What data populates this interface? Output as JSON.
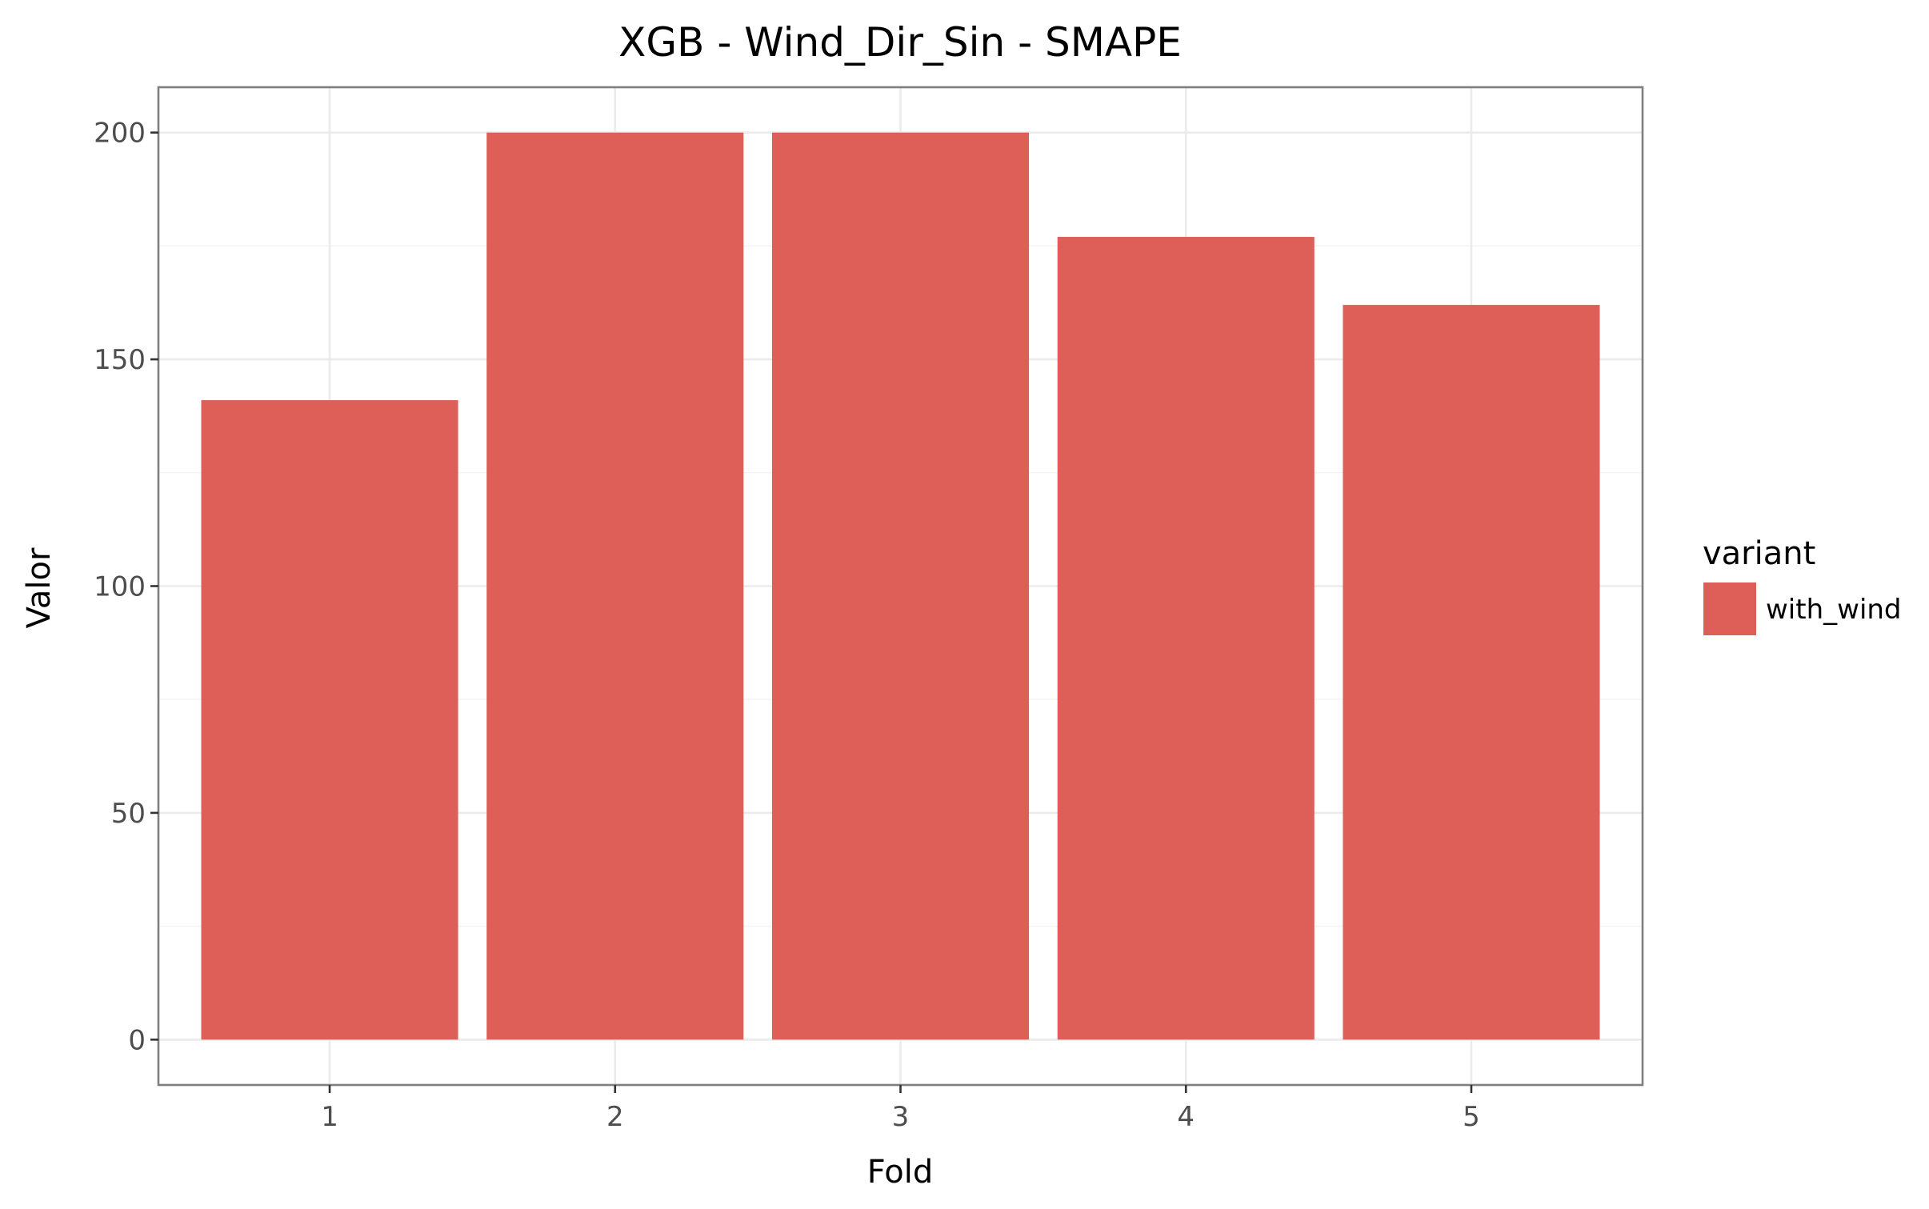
{
  "chart_data": {
    "type": "bar",
    "title": "XGB - Wind_Dir_Sin - SMAPE",
    "xlabel": "Fold",
    "ylabel": "Valor",
    "categories": [
      "1",
      "2",
      "3",
      "4",
      "5"
    ],
    "series": [
      {
        "name": "with_wind",
        "values": [
          141,
          200,
          200,
          177,
          162
        ],
        "color": "#dd5f58"
      }
    ],
    "ylim": [
      -10,
      210
    ],
    "yticks": [
      0,
      50,
      100,
      150,
      200
    ],
    "grid": true,
    "legend": {
      "title": "variant",
      "position": "right"
    }
  }
}
